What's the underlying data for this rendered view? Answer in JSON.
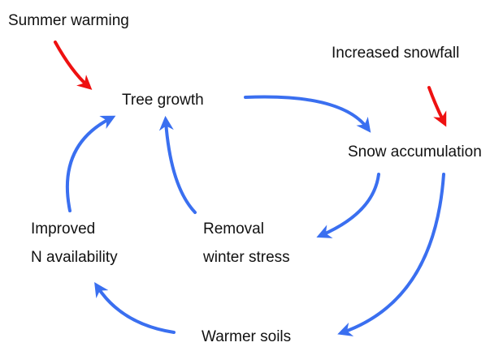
{
  "nodes": [
    {
      "label": "Summer warming"
    },
    {
      "label": "Increased snowfall"
    },
    {
      "label": "Tree growth"
    },
    {
      "label": "Snow accumulation"
    },
    {
      "lines": [
        "Improved",
        "N availability"
      ]
    },
    {
      "lines": [
        "Removal",
        "winter stress"
      ]
    },
    {
      "label": "Warmer soils"
    }
  ]
}
